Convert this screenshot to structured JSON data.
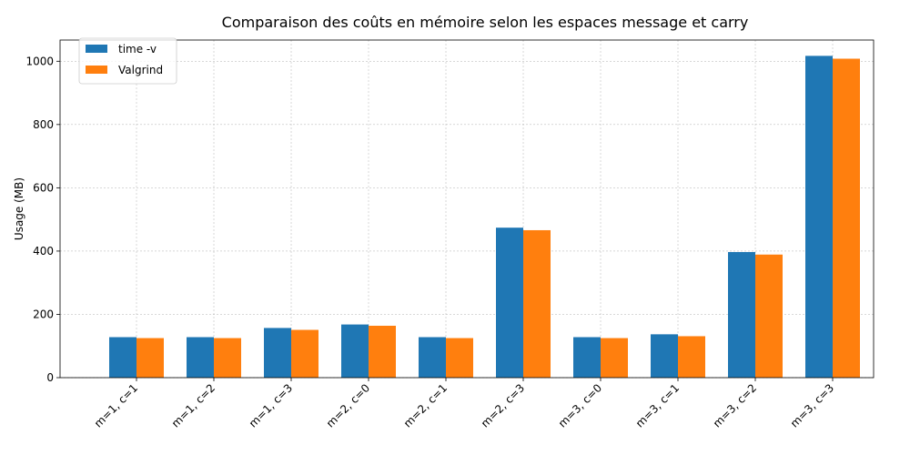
{
  "chart_data": {
    "type": "bar",
    "title": "Comparaison des coûts en mémoire selon les espaces message et carry",
    "xlabel": "",
    "ylabel": "Usage (MB)",
    "categories": [
      "m=1, c=1",
      "m=1, c=2",
      "m=1, c=3",
      "m=2, c=0",
      "m=2, c=1",
      "m=2, c=3",
      "m=3, c=0",
      "m=3, c=1",
      "m=3, c=2",
      "m=3, c=3"
    ],
    "series": [
      {
        "name": "time -v",
        "color": "#1f77b4",
        "values": [
          128,
          128,
          157,
          168,
          128,
          474,
          128,
          137,
          397,
          1017
        ]
      },
      {
        "name": "Valgrind",
        "color": "#ff7f0e",
        "values": [
          125,
          125,
          151,
          164,
          125,
          466,
          125,
          131,
          389,
          1008
        ]
      }
    ],
    "ylim": [
      0,
      1067
    ],
    "yticks": [
      0,
      200,
      400,
      600,
      800,
      1000
    ],
    "grid": true,
    "legend_position": "top-left"
  }
}
